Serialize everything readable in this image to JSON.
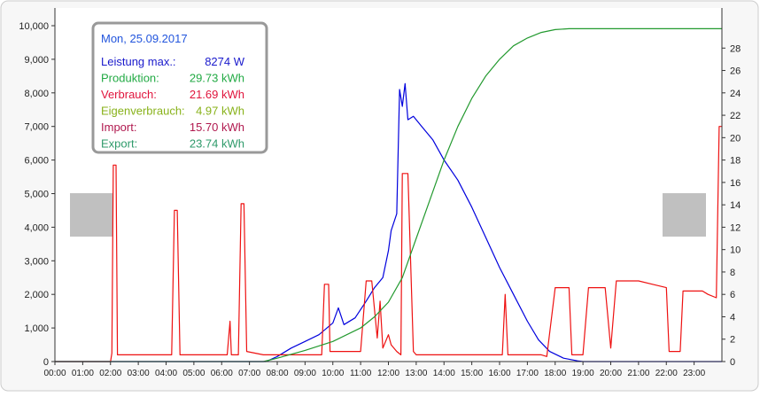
{
  "info": {
    "date": "Mon, 25.09.2017",
    "rows": [
      {
        "label": "Leistung max.:",
        "value": "8274 W",
        "color": "#1a1acc"
      },
      {
        "label": "Produktion:",
        "value": "29.73 kWh",
        "color": "#22aa44"
      },
      {
        "label": "Verbrauch:",
        "value": "21.69 kWh",
        "color": "#e0143c"
      },
      {
        "label": "Eigenverbrauch:",
        "value": "4.97 kWh",
        "color": "#88b21a"
      },
      {
        "label": "Import:",
        "value": "15.70 kWh",
        "color": "#b0184e"
      },
      {
        "label": "Export:",
        "value": "23.74 kWh",
        "color": "#2e9a6a"
      }
    ],
    "date_color": "#2255dd"
  },
  "chart_data": {
    "type": "line",
    "title": "",
    "xlabel": "",
    "ylabel": "",
    "x_ticks": [
      "00:00",
      "01:00",
      "02:00",
      "03:00",
      "04:00",
      "05:00",
      "06:00",
      "07:00",
      "08:00",
      "09:00",
      "10:00",
      "11:00",
      "12:00",
      "13:00",
      "14:00",
      "15:00",
      "16:00",
      "17:00",
      "18:00",
      "19:00",
      "20:00",
      "21:00",
      "22:00",
      "23:00"
    ],
    "x_range_hours": [
      0,
      24
    ],
    "y_left": {
      "range": [
        0,
        10000
      ],
      "ticks": [
        "0",
        "1,000",
        "2,000",
        "3,000",
        "4,000",
        "5,000",
        "6,000",
        "7,000",
        "8,000",
        "9,000",
        "10,000"
      ]
    },
    "y_right": {
      "range": [
        0,
        30
      ],
      "ticks": [
        "0",
        "2",
        "4",
        "6",
        "8",
        "10",
        "12",
        "14",
        "16",
        "18",
        "20",
        "22",
        "24",
        "26",
        "28"
      ]
    },
    "grid": false,
    "series": [
      {
        "color": "#0000dd",
        "axis": "left",
        "points": [
          [
            0,
            0
          ],
          [
            7.6,
            0
          ],
          [
            8.0,
            150
          ],
          [
            8.5,
            400
          ],
          [
            9.0,
            600
          ],
          [
            9.5,
            800
          ],
          [
            10.0,
            1150
          ],
          [
            10.2,
            1600
          ],
          [
            10.4,
            1100
          ],
          [
            10.8,
            1300
          ],
          [
            11.2,
            1800
          ],
          [
            11.5,
            2200
          ],
          [
            11.8,
            2500
          ],
          [
            12.0,
            3300
          ],
          [
            12.1,
            3900
          ],
          [
            12.3,
            4400
          ],
          [
            12.4,
            8100
          ],
          [
            12.5,
            7600
          ],
          [
            12.6,
            8274
          ],
          [
            12.7,
            7200
          ],
          [
            12.9,
            7300
          ],
          [
            13.2,
            7000
          ],
          [
            13.6,
            6600
          ],
          [
            14.0,
            6000
          ],
          [
            14.5,
            5400
          ],
          [
            15.0,
            4600
          ],
          [
            15.5,
            3700
          ],
          [
            16.0,
            2800
          ],
          [
            16.5,
            2000
          ],
          [
            17.0,
            1200
          ],
          [
            17.4,
            650
          ],
          [
            17.8,
            300
          ],
          [
            18.3,
            100
          ],
          [
            18.8,
            20
          ],
          [
            19.0,
            0
          ],
          [
            24,
            0
          ]
        ]
      },
      {
        "color": "#ee1111",
        "axis": "left",
        "points": [
          [
            0,
            0
          ],
          [
            2.0,
            0
          ],
          [
            2.05,
            250
          ],
          [
            2.1,
            5850
          ],
          [
            2.2,
            5850
          ],
          [
            2.25,
            200
          ],
          [
            4.2,
            200
          ],
          [
            4.3,
            4500
          ],
          [
            4.4,
            4500
          ],
          [
            4.5,
            200
          ],
          [
            6.2,
            200
          ],
          [
            6.3,
            1200
          ],
          [
            6.35,
            200
          ],
          [
            6.6,
            200
          ],
          [
            6.7,
            4700
          ],
          [
            6.8,
            4700
          ],
          [
            6.9,
            300
          ],
          [
            7.5,
            200
          ],
          [
            9.6,
            200
          ],
          [
            9.7,
            2300
          ],
          [
            9.85,
            2300
          ],
          [
            9.9,
            300
          ],
          [
            11.0,
            300
          ],
          [
            11.2,
            2400
          ],
          [
            11.4,
            2400
          ],
          [
            11.6,
            700
          ],
          [
            11.7,
            1800
          ],
          [
            11.8,
            400
          ],
          [
            12.0,
            800
          ],
          [
            12.1,
            500
          ],
          [
            12.3,
            300
          ],
          [
            12.45,
            200
          ],
          [
            12.5,
            5600
          ],
          [
            12.7,
            5600
          ],
          [
            12.9,
            300
          ],
          [
            13.0,
            200
          ],
          [
            16.1,
            200
          ],
          [
            16.2,
            2000
          ],
          [
            16.3,
            200
          ],
          [
            17.5,
            200
          ],
          [
            17.7,
            150
          ],
          [
            18.0,
            2200
          ],
          [
            18.5,
            2200
          ],
          [
            18.6,
            200
          ],
          [
            19.0,
            200
          ],
          [
            19.2,
            2200
          ],
          [
            19.8,
            2200
          ],
          [
            20.0,
            400
          ],
          [
            20.2,
            2400
          ],
          [
            21.0,
            2400
          ],
          [
            21.5,
            2300
          ],
          [
            22.0,
            2200
          ],
          [
            22.1,
            300
          ],
          [
            22.5,
            300
          ],
          [
            22.6,
            2100
          ],
          [
            23.3,
            2100
          ],
          [
            23.5,
            2000
          ],
          [
            23.8,
            1900
          ],
          [
            23.9,
            7000
          ],
          [
            24,
            7000
          ]
        ]
      },
      {
        "color": "#22992e",
        "axis": "right",
        "points": [
          [
            0,
            0
          ],
          [
            7.5,
            0
          ],
          [
            8.0,
            0.3
          ],
          [
            9.0,
            1.0
          ],
          [
            10.0,
            1.8
          ],
          [
            11.0,
            3.0
          ],
          [
            11.5,
            4.0
          ],
          [
            12.0,
            5.3
          ],
          [
            12.5,
            7.5
          ],
          [
            13.0,
            11.0
          ],
          [
            13.5,
            14.5
          ],
          [
            14.0,
            18.0
          ],
          [
            14.5,
            21.0
          ],
          [
            15.0,
            23.5
          ],
          [
            15.5,
            25.5
          ],
          [
            16.0,
            27.0
          ],
          [
            16.5,
            28.2
          ],
          [
            17.0,
            28.9
          ],
          [
            17.5,
            29.4
          ],
          [
            18.0,
            29.65
          ],
          [
            18.5,
            29.73
          ],
          [
            24,
            29.73
          ]
        ]
      }
    ],
    "colors": {
      "background": "#ffffff",
      "panel": "#ffffff",
      "info_border": "#999999",
      "gray_block": "#c0c0c0"
    }
  }
}
